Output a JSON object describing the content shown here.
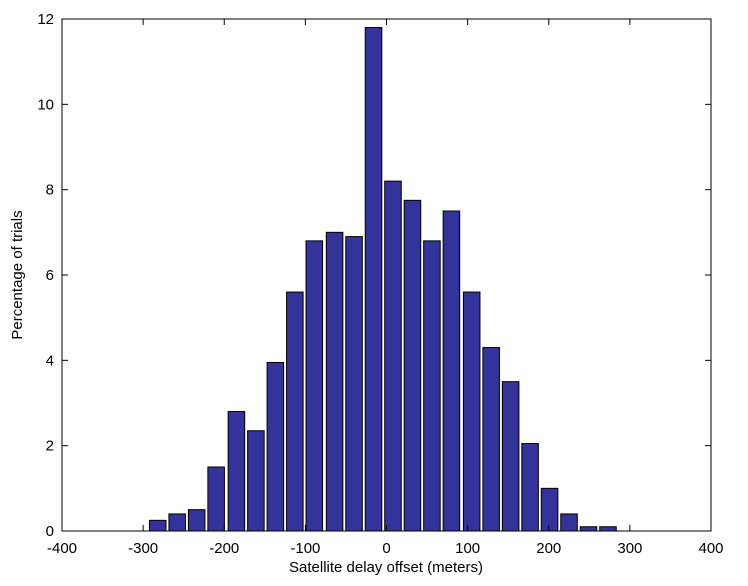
{
  "chart_data": {
    "type": "bar",
    "xlabel": "Satellite delay offset (meters)",
    "ylabel": "Percentage of trials",
    "x": [
      -282,
      -258,
      -234,
      -210,
      -185,
      -161,
      -137,
      -113,
      -89,
      -64,
      -40,
      -16,
      8,
      32,
      56,
      80,
      105,
      129,
      153,
      177,
      201,
      225,
      249,
      273
    ],
    "values": [
      0.25,
      0.4,
      0.5,
      1.5,
      2.8,
      2.35,
      3.95,
      5.6,
      6.8,
      7.0,
      6.9,
      11.8,
      8.2,
      7.75,
      6.8,
      7.5,
      5.6,
      4.3,
      3.5,
      2.05,
      1.0,
      0.4,
      0.1,
      0.1
    ],
    "color": "#33339b",
    "xlim": [
      -400,
      400
    ],
    "xticks": [
      -400,
      -300,
      -200,
      -100,
      0,
      100,
      200,
      300,
      400
    ],
    "ylim": [
      0,
      12
    ],
    "yticks": [
      0,
      2,
      4,
      6,
      8,
      10,
      12
    ],
    "grid": false
  }
}
